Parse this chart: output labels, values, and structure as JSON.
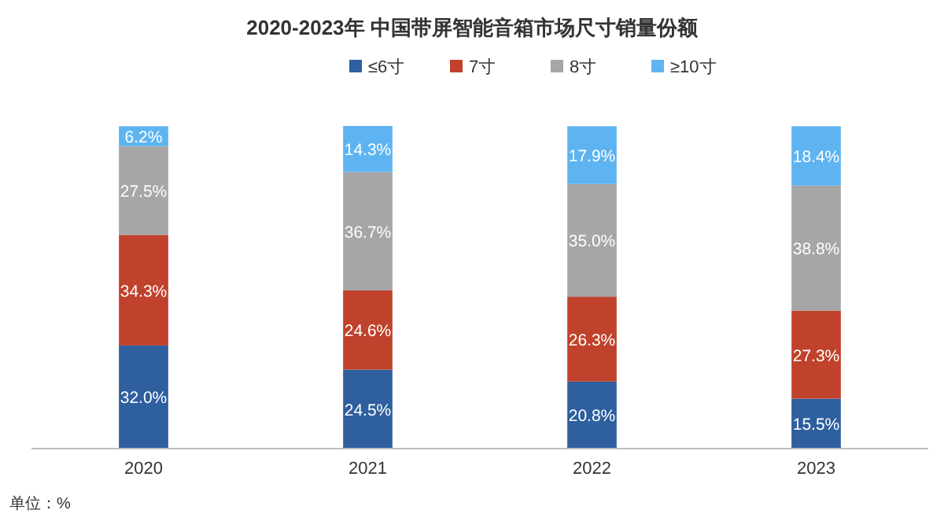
{
  "chart_data": {
    "type": "bar",
    "title": "2020-2023年 中国带屏智能音箱市场尺寸销量份额",
    "categories": [
      "2020",
      "2021",
      "2022",
      "2023"
    ],
    "stacked": true,
    "legend": "top",
    "series": [
      {
        "name": "≤6寸",
        "color": "#2e5f9e",
        "values": [
          32.0,
          24.5,
          20.8,
          15.5
        ],
        "value_labels": [
          "32.0%",
          "24.5%",
          "20.8%",
          "15.5%"
        ]
      },
      {
        "name": "7寸",
        "color": "#c0422c",
        "values": [
          34.3,
          24.6,
          26.3,
          27.3
        ],
        "value_labels": [
          "34.3%",
          "24.6%",
          "26.3%",
          "27.3%"
        ]
      },
      {
        "name": "8寸",
        "color": "#a6a6a6",
        "values": [
          27.5,
          36.7,
          35.0,
          38.8
        ],
        "value_labels": [
          "27.5%",
          "36.7%",
          "35.0%",
          "38.8%"
        ]
      },
      {
        "name": "≥10寸",
        "color": "#5eb4f0",
        "values": [
          6.2,
          14.3,
          17.9,
          18.4
        ],
        "value_labels": [
          "6.2%",
          "14.3%",
          "17.9%",
          "18.4%"
        ]
      }
    ],
    "annotations": [
      "单位：%"
    ]
  }
}
